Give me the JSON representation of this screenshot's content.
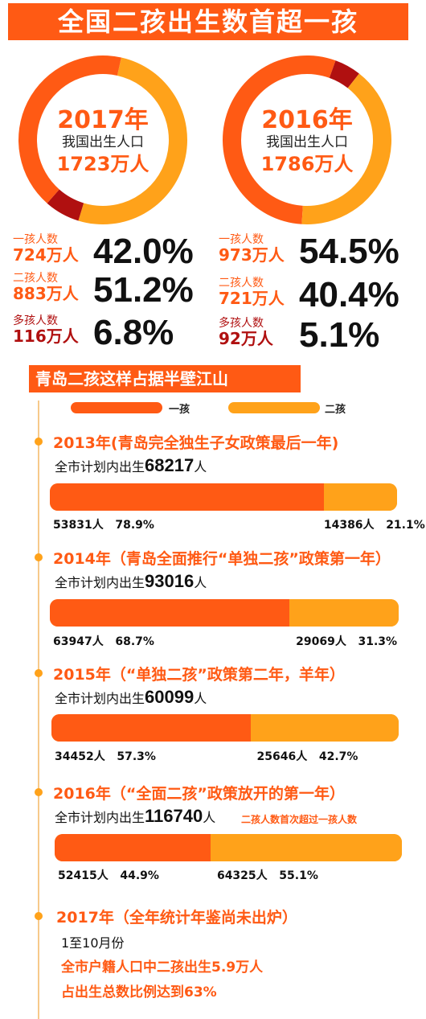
{
  "header": {
    "title": "全国二孩出生数首超一孩"
  },
  "colors": {
    "one_child": "#ff5a14",
    "two_child": "#ffa21a",
    "multi_child": "#b01010"
  },
  "chart_data": [
    {
      "type": "pie",
      "title": "2017年",
      "subtitle": "我国出生人口",
      "total": "1723万人",
      "slices": [
        {
          "name": "一孩人数",
          "count": "724万人",
          "percent_label": "42.0%",
          "value": 42.0
        },
        {
          "name": "二孩人数",
          "count": "883万人",
          "percent_label": "51.2%",
          "value": 51.2
        },
        {
          "name": "多孩人数",
          "count": "116万人",
          "percent_label": "6.8%",
          "value": 6.8
        }
      ]
    },
    {
      "type": "pie",
      "title": "2016年",
      "subtitle": "我国出生人口",
      "total": "1786万人",
      "slices": [
        {
          "name": "一孩人数",
          "count": "973万人",
          "percent_label": "54.5%",
          "value": 54.5
        },
        {
          "name": "二孩人数",
          "count": "721万人",
          "percent_label": "40.4%",
          "value": 40.4
        },
        {
          "name": "多孩人数",
          "count": "92万人",
          "percent_label": "5.1%",
          "value": 5.1
        }
      ]
    },
    {
      "type": "bar",
      "title": "青岛二孩这样占据半壁江山",
      "legend": [
        "一孩",
        "二孩"
      ],
      "rows": [
        {
          "heading": "2013年(青岛完全独生子女政策最后一年)",
          "plan_prefix": "全市计划内出生",
          "plan_number": "68217",
          "plan_suffix": "人",
          "one_count": "53831人",
          "one_pct": "78.9%",
          "two_count": "14386人",
          "two_pct": "21.1%",
          "one_value": 78.9
        },
        {
          "heading": "2014年（青岛全面推行“单独二孩”政策第一年）",
          "plan_prefix": "全市计划内出生",
          "plan_number": "93016",
          "plan_suffix": "人",
          "one_count": "63947人",
          "one_pct": "68.7%",
          "two_count": "29069人",
          "two_pct": "31.3%",
          "one_value": 68.7
        },
        {
          "heading": "2015年（“单独二孩”政策第二年，羊年）",
          "plan_prefix": "全市计划内出生",
          "plan_number": "60099",
          "plan_suffix": "人",
          "one_count": "34452人",
          "one_pct": "57.3%",
          "two_count": "25646人",
          "two_pct": "42.7%",
          "one_value": 57.3
        },
        {
          "heading": "2016年（“全面二孩”政策放开的第一年）",
          "plan_prefix": "全市计划内出生",
          "plan_number": "116740",
          "plan_suffix": "人",
          "note": "二孩人数首次超过一孩人数",
          "one_count": "52415人",
          "one_pct": "44.9%",
          "two_count": "64325人",
          "two_pct": "55.1%",
          "one_value": 44.9
        }
      ]
    }
  ],
  "y2017": {
    "heading": "2017年（全年统计年鉴尚未出炉）",
    "period": "1至10月份",
    "line1": "全市户籍人口中二孩出生5.9万人",
    "line2": "占出生总数比例达到63%"
  }
}
